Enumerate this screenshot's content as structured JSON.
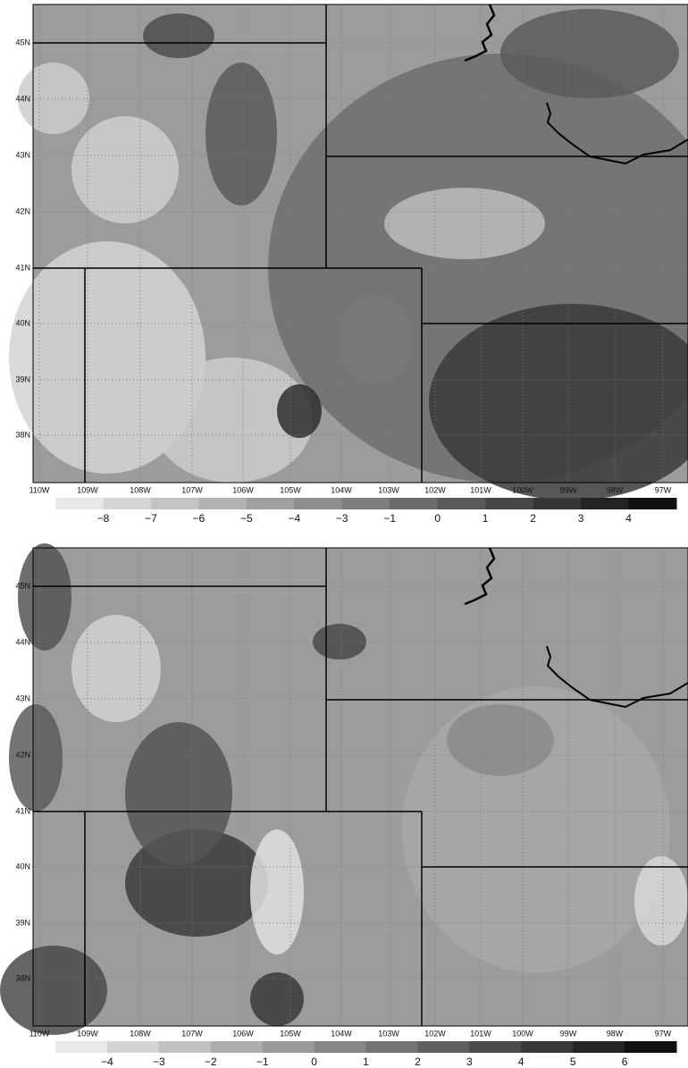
{
  "panels": [
    {
      "lat_labels": [
        "45N",
        "44N",
        "43N",
        "42N",
        "41N",
        "40N",
        "39N",
        "38N"
      ],
      "lon_labels": [
        "110W",
        "109W",
        "108W",
        "107W",
        "106W",
        "105W",
        "104W",
        "103W",
        "102W",
        "101W",
        "100W",
        "99W",
        "98W",
        "97W"
      ],
      "colorbar_labels": [
        "−8",
        "−7",
        "−6",
        "−5",
        "−4",
        "−3",
        "−1",
        "0",
        "1",
        "2",
        "3",
        "4"
      ]
    },
    {
      "lat_labels": [
        "45N",
        "44N",
        "43N",
        "42N",
        "41N",
        "40N",
        "39N",
        "38N"
      ],
      "lon_labels": [
        "110W",
        "109W",
        "108W",
        "107W",
        "106W",
        "105W",
        "104W",
        "103W",
        "102W",
        "101W",
        "100W",
        "99W",
        "98W",
        "97W"
      ],
      "colorbar_labels": [
        "−4",
        "−3",
        "−2",
        "−1",
        "0",
        "1",
        "2",
        "3",
        "4",
        "5",
        "6"
      ]
    }
  ]
}
